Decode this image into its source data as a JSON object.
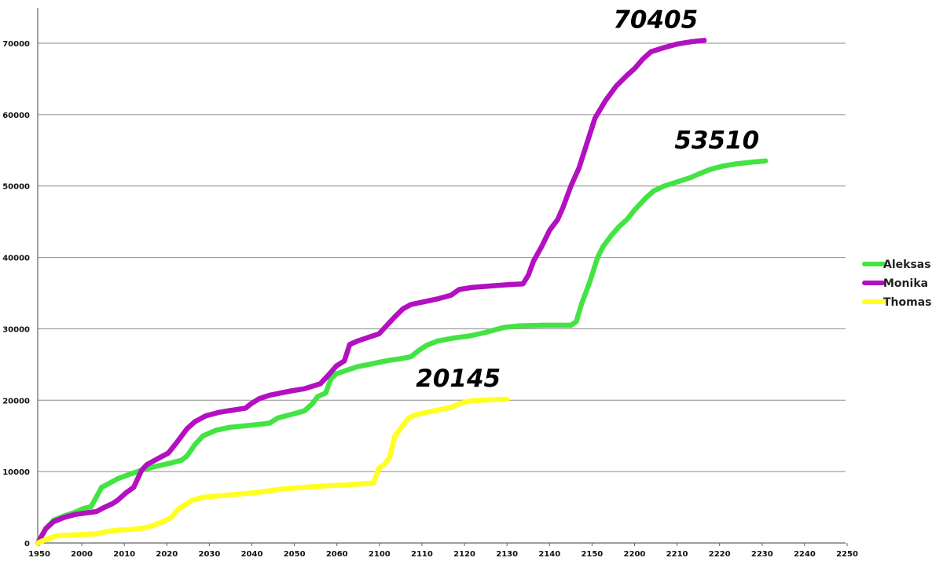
{
  "chart_data": {
    "type": "line",
    "title": "",
    "xlabel": "",
    "ylabel": "",
    "xlim": [
      1950,
      2253
    ],
    "ylim": [
      0,
      75000
    ],
    "x_ticks": [
      "1950",
      "2000",
      "2010",
      "2020",
      "2030",
      "2040",
      "2050",
      "2060",
      "2100",
      "2110",
      "2120",
      "2130",
      "2140",
      "2150",
      "2200",
      "2210",
      "2220",
      "2230",
      "2240",
      "2250"
    ],
    "y_ticks": [
      "0",
      "10000",
      "20000",
      "30000",
      "40000",
      "50000",
      "60000",
      "70000"
    ],
    "grid": "horizontal",
    "legend_position": "right",
    "series": [
      {
        "name": "Aleksas",
        "color": "#44e344",
        "end_label": "53510",
        "points": [
          [
            1950,
            0
          ],
          [
            1953,
            2000
          ],
          [
            1956,
            3200
          ],
          [
            1960,
            3800
          ],
          [
            1964,
            4300
          ],
          [
            1967,
            4800
          ],
          [
            1970,
            5100
          ],
          [
            1974,
            7800
          ],
          [
            1977,
            8400
          ],
          [
            1980,
            9000
          ],
          [
            1985,
            9700
          ],
          [
            1990,
            10300
          ],
          [
            1995,
            10800
          ],
          [
            2000,
            11200
          ],
          [
            2004,
            11600
          ],
          [
            2006,
            12200
          ],
          [
            2009,
            13800
          ],
          [
            2012,
            15000
          ],
          [
            2017,
            15800
          ],
          [
            2022,
            16200
          ],
          [
            2030,
            16500
          ],
          [
            2035,
            16700
          ],
          [
            2037,
            16800
          ],
          [
            2040,
            17500
          ],
          [
            2045,
            18000
          ],
          [
            2050,
            18500
          ],
          [
            2053,
            19500
          ],
          [
            2055,
            20500
          ],
          [
            2058,
            21000
          ],
          [
            2060,
            23000
          ],
          [
            2062,
            23700
          ],
          [
            2066,
            24200
          ],
          [
            2070,
            24700
          ],
          [
            2074,
            25000
          ],
          [
            2078,
            25300
          ],
          [
            2082,
            25600
          ],
          [
            2086,
            25800
          ],
          [
            2090,
            26100
          ],
          [
            2093,
            27000
          ],
          [
            2096,
            27700
          ],
          [
            2100,
            28300
          ],
          [
            2106,
            28700
          ],
          [
            2112,
            29000
          ],
          [
            2118,
            29500
          ],
          [
            2122,
            29900
          ],
          [
            2125,
            30200
          ],
          [
            2130,
            30400
          ],
          [
            2140,
            30500
          ],
          [
            2150,
            30500
          ],
          [
            2152,
            31000
          ],
          [
            2154,
            33500
          ],
          [
            2157,
            36500
          ],
          [
            2160,
            40000
          ],
          [
            2162,
            41500
          ],
          [
            2165,
            43000
          ],
          [
            2168,
            44300
          ],
          [
            2171,
            45300
          ],
          [
            2174,
            46700
          ],
          [
            2178,
            48300
          ],
          [
            2181,
            49300
          ],
          [
            2185,
            50000
          ],
          [
            2190,
            50600
          ],
          [
            2195,
            51200
          ],
          [
            2198,
            51700
          ],
          [
            2202,
            52300
          ],
          [
            2207,
            52800
          ],
          [
            2212,
            53100
          ],
          [
            2218,
            53350
          ],
          [
            2223,
            53510
          ]
        ]
      },
      {
        "name": "Monika",
        "color": "#b210c0",
        "end_label": "70405",
        "points": [
          [
            1950,
            0
          ],
          [
            1953,
            2000
          ],
          [
            1956,
            3000
          ],
          [
            1960,
            3600
          ],
          [
            1964,
            4000
          ],
          [
            1968,
            4200
          ],
          [
            1972,
            4400
          ],
          [
            1975,
            5000
          ],
          [
            1978,
            5500
          ],
          [
            1980,
            6000
          ],
          [
            1983,
            7000
          ],
          [
            1986,
            7800
          ],
          [
            1989,
            10200
          ],
          [
            1991,
            11000
          ],
          [
            1995,
            11800
          ],
          [
            1999,
            12600
          ],
          [
            2002,
            14000
          ],
          [
            2006,
            16000
          ],
          [
            2009,
            17000
          ],
          [
            2013,
            17800
          ],
          [
            2018,
            18300
          ],
          [
            2023,
            18600
          ],
          [
            2028,
            18900
          ],
          [
            2030,
            19500
          ],
          [
            2033,
            20200
          ],
          [
            2037,
            20700
          ],
          [
            2041,
            21000
          ],
          [
            2045,
            21300
          ],
          [
            2050,
            21600
          ],
          [
            2056,
            22300
          ],
          [
            2059,
            23500
          ],
          [
            2062,
            24800
          ],
          [
            2065,
            25500
          ],
          [
            2067,
            27800
          ],
          [
            2070,
            28300
          ],
          [
            2074,
            28800
          ],
          [
            2078,
            29300
          ],
          [
            2081,
            30500
          ],
          [
            2084,
            31700
          ],
          [
            2087,
            32800
          ],
          [
            2090,
            33400
          ],
          [
            2095,
            33800
          ],
          [
            2100,
            34200
          ],
          [
            2105,
            34700
          ],
          [
            2108,
            35500
          ],
          [
            2113,
            35800
          ],
          [
            2120,
            36000
          ],
          [
            2127,
            36200
          ],
          [
            2132,
            36300
          ],
          [
            2134,
            37500
          ],
          [
            2136,
            39500
          ],
          [
            2139,
            41500
          ],
          [
            2142,
            43800
          ],
          [
            2145,
            45300
          ],
          [
            2147,
            47000
          ],
          [
            2150,
            50000
          ],
          [
            2153,
            52500
          ],
          [
            2156,
            56000
          ],
          [
            2159,
            59500
          ],
          [
            2163,
            62000
          ],
          [
            2167,
            64000
          ],
          [
            2171,
            65500
          ],
          [
            2174,
            66500
          ],
          [
            2177,
            67800
          ],
          [
            2180,
            68800
          ],
          [
            2185,
            69400
          ],
          [
            2190,
            69900
          ],
          [
            2195,
            70200
          ],
          [
            2200,
            70405
          ]
        ]
      },
      {
        "name": "Thomas",
        "color": "#ffff22",
        "end_label": "20145",
        "points": [
          [
            1950,
            0
          ],
          [
            1953,
            500
          ],
          [
            1957,
            1000
          ],
          [
            1962,
            1100
          ],
          [
            1968,
            1200
          ],
          [
            1972,
            1300
          ],
          [
            1976,
            1600
          ],
          [
            1980,
            1800
          ],
          [
            1985,
            1900
          ],
          [
            1990,
            2100
          ],
          [
            1993,
            2400
          ],
          [
            1997,
            3000
          ],
          [
            2000,
            3500
          ],
          [
            2002,
            4500
          ],
          [
            2005,
            5300
          ],
          [
            2008,
            6000
          ],
          [
            2012,
            6400
          ],
          [
            2018,
            6600
          ],
          [
            2024,
            6800
          ],
          [
            2030,
            7000
          ],
          [
            2035,
            7200
          ],
          [
            2040,
            7500
          ],
          [
            2050,
            7800
          ],
          [
            2058,
            8000
          ],
          [
            2065,
            8100
          ],
          [
            2072,
            8300
          ],
          [
            2076,
            8400
          ],
          [
            2078,
            10500
          ],
          [
            2080,
            11000
          ],
          [
            2082,
            12000
          ],
          [
            2084,
            15000
          ],
          [
            2087,
            16500
          ],
          [
            2089,
            17500
          ],
          [
            2092,
            18000
          ],
          [
            2096,
            18300
          ],
          [
            2100,
            18600
          ],
          [
            2105,
            19000
          ],
          [
            2108,
            19500
          ],
          [
            2112,
            19900
          ],
          [
            2117,
            20000
          ],
          [
            2122,
            20100
          ],
          [
            2126,
            20145
          ]
        ]
      }
    ]
  }
}
